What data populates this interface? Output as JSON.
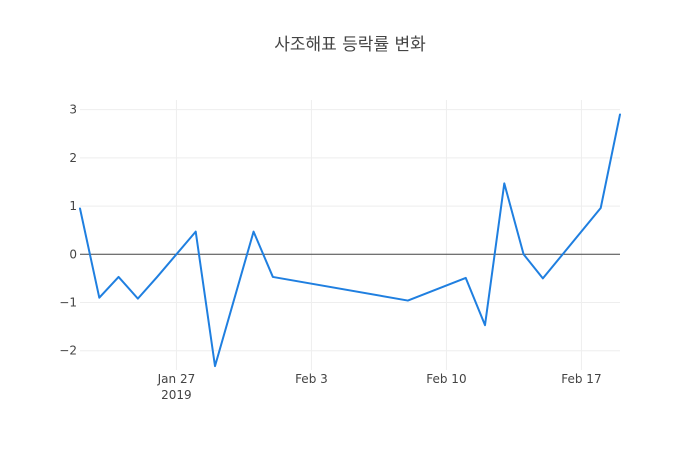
{
  "chart_data": {
    "type": "line",
    "title": "사조해표 등락률 변화",
    "xlabel": "",
    "ylabel": "",
    "xlim": [
      "2019-01-22",
      "2019-02-19"
    ],
    "ylim": [
      -2.4,
      3.2
    ],
    "grid": true,
    "legend": "none",
    "x_ticks": [
      {
        "date": "2019-01-27",
        "label": "Jan 27",
        "sublabel": "2019"
      },
      {
        "date": "2019-02-03",
        "label": "Feb 3",
        "sublabel": ""
      },
      {
        "date": "2019-02-10",
        "label": "Feb 10",
        "sublabel": ""
      },
      {
        "date": "2019-02-17",
        "label": "Feb 17",
        "sublabel": ""
      }
    ],
    "y_ticks": [
      {
        "value": 3,
        "label": "3"
      },
      {
        "value": 2,
        "label": "2"
      },
      {
        "value": 1,
        "label": "1"
      },
      {
        "value": 0,
        "label": "0"
      },
      {
        "value": -1,
        "label": "−1"
      },
      {
        "value": -2,
        "label": "−2"
      }
    ],
    "series": [
      {
        "color": "#1f7fe0",
        "x": [
          "2019-01-22",
          "2019-01-23",
          "2019-01-24",
          "2019-01-25",
          "2019-01-26",
          "2019-01-28",
          "2019-01-29",
          "2019-01-31",
          "2019-02-01",
          "2019-02-08",
          "2019-02-11",
          "2019-02-12",
          "2019-02-13",
          "2019-02-14",
          "2019-02-15",
          "2019-02-18",
          "2019-02-19"
        ],
        "y": [
          0.95,
          -0.9,
          -0.47,
          -0.92,
          -0.47,
          0.47,
          -2.32,
          0.47,
          -0.47,
          -0.96,
          -0.49,
          -1.47,
          1.47,
          0.0,
          -0.5,
          0.96,
          2.9
        ]
      }
    ]
  }
}
